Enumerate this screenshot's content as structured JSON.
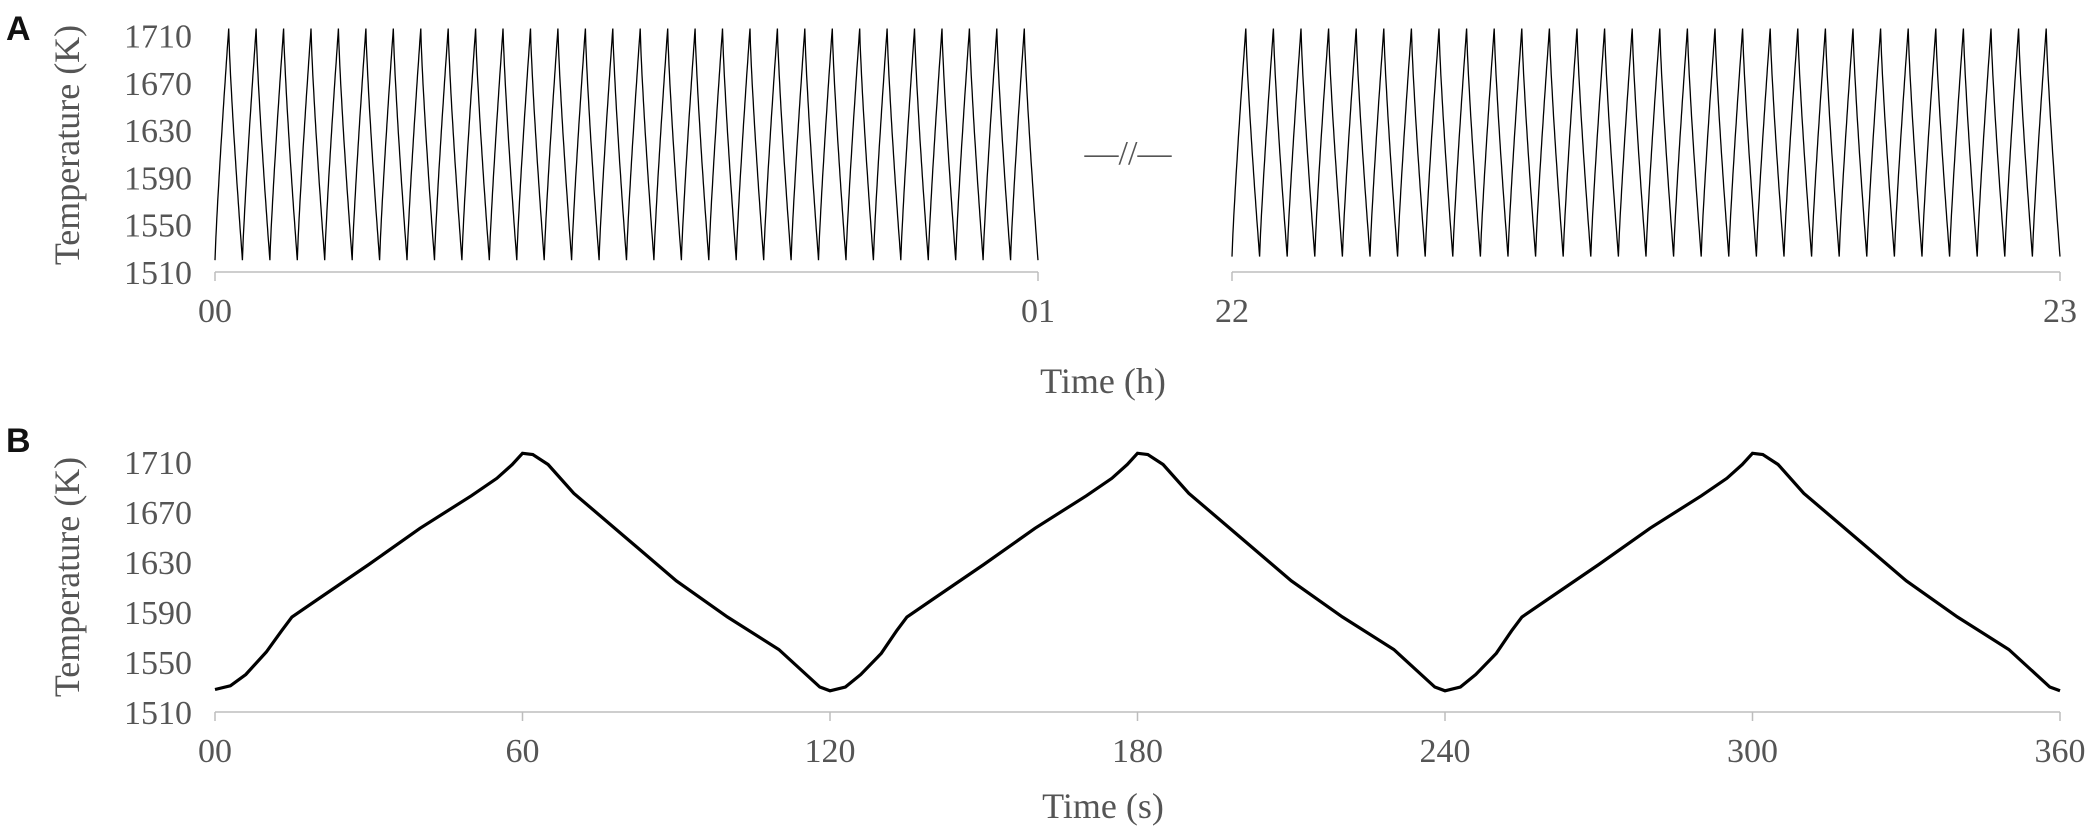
{
  "chart_data": [
    {
      "panel": "A",
      "type": "line",
      "xlabel": "Time (h)",
      "ylabel": "Temperature (K)",
      "ylim": [
        1510,
        1730
      ],
      "yticks": [
        1510,
        1550,
        1590,
        1630,
        1670,
        1710
      ],
      "grid": false,
      "axis_break": {
        "between": [
          "01",
          "22"
        ],
        "symbol": "—//—"
      },
      "segments": [
        {
          "x_start_label": "00",
          "x_end_label": "01",
          "x_range_h": [
            0,
            1
          ],
          "cycles": 30,
          "period_s": 120,
          "min": 1520,
          "max": 1716
        },
        {
          "x_start_label": "22",
          "x_end_label": "23",
          "x_range_h": [
            22,
            23
          ],
          "cycles": 30,
          "period_s": 120,
          "min": 1523,
          "max": 1716
        }
      ]
    },
    {
      "panel": "B",
      "type": "line",
      "xlabel": "Time (s)",
      "ylabel": "Temperature (K)",
      "xlim": [
        0,
        360
      ],
      "ylim": [
        1510,
        1730
      ],
      "xticks": [
        0,
        60,
        120,
        180,
        240,
        300,
        360
      ],
      "xtick_labels": [
        "00",
        "60",
        "120",
        "180",
        "240",
        "300",
        "360"
      ],
      "yticks": [
        1510,
        1550,
        1590,
        1630,
        1670,
        1710
      ],
      "grid": false,
      "series": [
        {
          "x": [
            0,
            3,
            6,
            10,
            13,
            15,
            20,
            30,
            40,
            50,
            55,
            58,
            60,
            62,
            65,
            70,
            80,
            90,
            100,
            110,
            118,
            120,
            123,
            126,
            130,
            133,
            135,
            140,
            150,
            160,
            170,
            175,
            178,
            180,
            182,
            185,
            190,
            200,
            210,
            220,
            230,
            238,
            240,
            243,
            246,
            250,
            253,
            255,
            260,
            270,
            280,
            290,
            295,
            298,
            300,
            302,
            305,
            310,
            320,
            330,
            340,
            350,
            358,
            360
          ],
          "y": [
            1528,
            1531,
            1540,
            1558,
            1575,
            1586,
            1600,
            1628,
            1657,
            1683,
            1697,
            1708,
            1717,
            1716,
            1708,
            1685,
            1650,
            1615,
            1586,
            1560,
            1530,
            1527,
            1530,
            1540,
            1557,
            1575,
            1586,
            1600,
            1628,
            1657,
            1683,
            1697,
            1708,
            1717,
            1716,
            1708,
            1685,
            1650,
            1615,
            1586,
            1560,
            1530,
            1527,
            1530,
            1540,
            1557,
            1575,
            1586,
            1600,
            1628,
            1657,
            1683,
            1697,
            1708,
            1717,
            1716,
            1708,
            1685,
            1650,
            1615,
            1586,
            1560,
            1530,
            1527
          ]
        }
      ]
    }
  ]
}
